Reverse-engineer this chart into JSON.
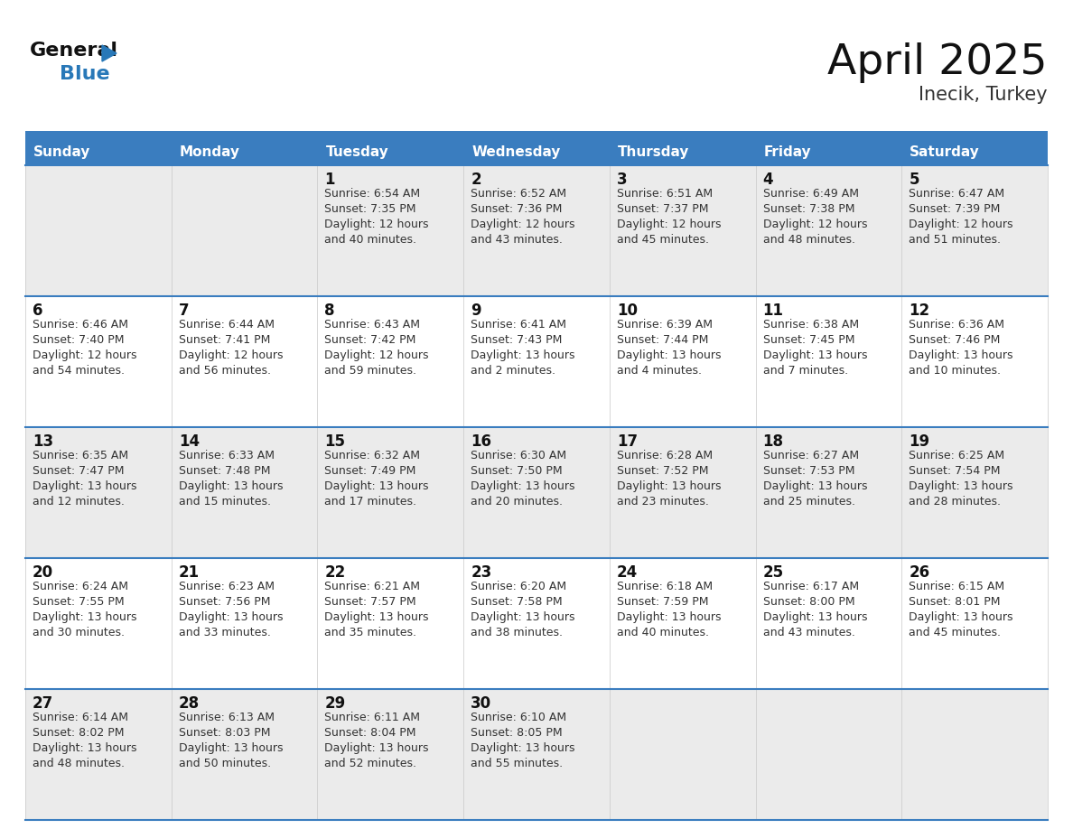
{
  "title": "April 2025",
  "subtitle": "Inecik, Turkey",
  "header_bg": "#3a7dbf",
  "header_text_color": "#ffffff",
  "cell_bg_odd": "#ebebeb",
  "cell_bg_even": "#ffffff",
  "day_names": [
    "Sunday",
    "Monday",
    "Tuesday",
    "Wednesday",
    "Thursday",
    "Friday",
    "Saturday"
  ],
  "title_color": "#111111",
  "subtitle_color": "#333333",
  "day_num_color": "#111111",
  "info_color": "#333333",
  "line_color": "#3a7dbf",
  "logo_general_color": "#111111",
  "logo_blue_color": "#2878b8",
  "weeks": [
    [
      {
        "day": "",
        "sunrise": "",
        "sunset": "",
        "daylight": ""
      },
      {
        "day": "",
        "sunrise": "",
        "sunset": "",
        "daylight": ""
      },
      {
        "day": "1",
        "sunrise": "6:54 AM",
        "sunset": "7:35 PM",
        "daylight": "12 hours and 40 minutes."
      },
      {
        "day": "2",
        "sunrise": "6:52 AM",
        "sunset": "7:36 PM",
        "daylight": "12 hours and 43 minutes."
      },
      {
        "day": "3",
        "sunrise": "6:51 AM",
        "sunset": "7:37 PM",
        "daylight": "12 hours and 45 minutes."
      },
      {
        "day": "4",
        "sunrise": "6:49 AM",
        "sunset": "7:38 PM",
        "daylight": "12 hours and 48 minutes."
      },
      {
        "day": "5",
        "sunrise": "6:47 AM",
        "sunset": "7:39 PM",
        "daylight": "12 hours and 51 minutes."
      }
    ],
    [
      {
        "day": "6",
        "sunrise": "6:46 AM",
        "sunset": "7:40 PM",
        "daylight": "12 hours and 54 minutes."
      },
      {
        "day": "7",
        "sunrise": "6:44 AM",
        "sunset": "7:41 PM",
        "daylight": "12 hours and 56 minutes."
      },
      {
        "day": "8",
        "sunrise": "6:43 AM",
        "sunset": "7:42 PM",
        "daylight": "12 hours and 59 minutes."
      },
      {
        "day": "9",
        "sunrise": "6:41 AM",
        "sunset": "7:43 PM",
        "daylight": "13 hours and 2 minutes."
      },
      {
        "day": "10",
        "sunrise": "6:39 AM",
        "sunset": "7:44 PM",
        "daylight": "13 hours and 4 minutes."
      },
      {
        "day": "11",
        "sunrise": "6:38 AM",
        "sunset": "7:45 PM",
        "daylight": "13 hours and 7 minutes."
      },
      {
        "day": "12",
        "sunrise": "6:36 AM",
        "sunset": "7:46 PM",
        "daylight": "13 hours and 10 minutes."
      }
    ],
    [
      {
        "day": "13",
        "sunrise": "6:35 AM",
        "sunset": "7:47 PM",
        "daylight": "13 hours and 12 minutes."
      },
      {
        "day": "14",
        "sunrise": "6:33 AM",
        "sunset": "7:48 PM",
        "daylight": "13 hours and 15 minutes."
      },
      {
        "day": "15",
        "sunrise": "6:32 AM",
        "sunset": "7:49 PM",
        "daylight": "13 hours and 17 minutes."
      },
      {
        "day": "16",
        "sunrise": "6:30 AM",
        "sunset": "7:50 PM",
        "daylight": "13 hours and 20 minutes."
      },
      {
        "day": "17",
        "sunrise": "6:28 AM",
        "sunset": "7:52 PM",
        "daylight": "13 hours and 23 minutes."
      },
      {
        "day": "18",
        "sunrise": "6:27 AM",
        "sunset": "7:53 PM",
        "daylight": "13 hours and 25 minutes."
      },
      {
        "day": "19",
        "sunrise": "6:25 AM",
        "sunset": "7:54 PM",
        "daylight": "13 hours and 28 minutes."
      }
    ],
    [
      {
        "day": "20",
        "sunrise": "6:24 AM",
        "sunset": "7:55 PM",
        "daylight": "13 hours and 30 minutes."
      },
      {
        "day": "21",
        "sunrise": "6:23 AM",
        "sunset": "7:56 PM",
        "daylight": "13 hours and 33 minutes."
      },
      {
        "day": "22",
        "sunrise": "6:21 AM",
        "sunset": "7:57 PM",
        "daylight": "13 hours and 35 minutes."
      },
      {
        "day": "23",
        "sunrise": "6:20 AM",
        "sunset": "7:58 PM",
        "daylight": "13 hours and 38 minutes."
      },
      {
        "day": "24",
        "sunrise": "6:18 AM",
        "sunset": "7:59 PM",
        "daylight": "13 hours and 40 minutes."
      },
      {
        "day": "25",
        "sunrise": "6:17 AM",
        "sunset": "8:00 PM",
        "daylight": "13 hours and 43 minutes."
      },
      {
        "day": "26",
        "sunrise": "6:15 AM",
        "sunset": "8:01 PM",
        "daylight": "13 hours and 45 minutes."
      }
    ],
    [
      {
        "day": "27",
        "sunrise": "6:14 AM",
        "sunset": "8:02 PM",
        "daylight": "13 hours and 48 minutes."
      },
      {
        "day": "28",
        "sunrise": "6:13 AM",
        "sunset": "8:03 PM",
        "daylight": "13 hours and 50 minutes."
      },
      {
        "day": "29",
        "sunrise": "6:11 AM",
        "sunset": "8:04 PM",
        "daylight": "13 hours and 52 minutes."
      },
      {
        "day": "30",
        "sunrise": "6:10 AM",
        "sunset": "8:05 PM",
        "daylight": "13 hours and 55 minutes."
      },
      {
        "day": "",
        "sunrise": "",
        "sunset": "",
        "daylight": ""
      },
      {
        "day": "",
        "sunrise": "",
        "sunset": "",
        "daylight": ""
      },
      {
        "day": "",
        "sunrise": "",
        "sunset": "",
        "daylight": ""
      }
    ]
  ]
}
